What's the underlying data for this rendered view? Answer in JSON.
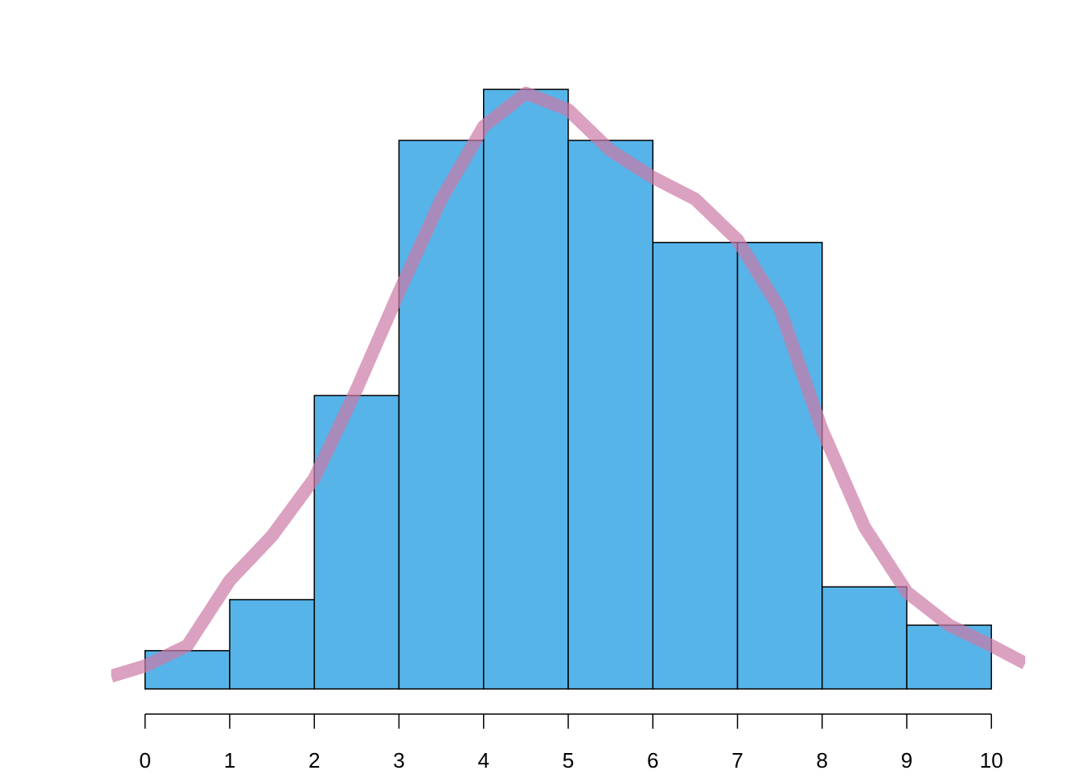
{
  "chart_data": {
    "type": "histogram",
    "bins": [
      0,
      1,
      2,
      3,
      4,
      5,
      6,
      7,
      8,
      9,
      10
    ],
    "values": [
      3,
      7,
      23,
      43,
      47,
      43,
      35,
      35,
      8,
      5
    ],
    "color": "#56b4e9",
    "density": {
      "color": "#cc79a7",
      "x": [
        -0.4,
        0,
        0.5,
        1,
        1.5,
        2,
        2.5,
        3,
        3.5,
        4,
        4.5,
        5,
        5.5,
        6,
        6.5,
        7,
        7.5,
        8,
        8.5,
        9,
        9.5,
        10,
        10.4
      ],
      "values": [
        1.0,
        1.8,
        3.4,
        8.5,
        12.0,
        16.5,
        23.5,
        31.1,
        38.4,
        44.1,
        46.7,
        45.4,
        42.2,
        40.1,
        38.4,
        35.2,
        29.8,
        20.3,
        12.7,
        7.6,
        5.0,
        3.4,
        2.0
      ]
    },
    "xlim": [
      -0.4,
      10.4
    ],
    "xticks": [
      0,
      1,
      2,
      3,
      4,
      5,
      6,
      7,
      8,
      9,
      10
    ],
    "ylim": [
      0,
      50
    ]
  }
}
